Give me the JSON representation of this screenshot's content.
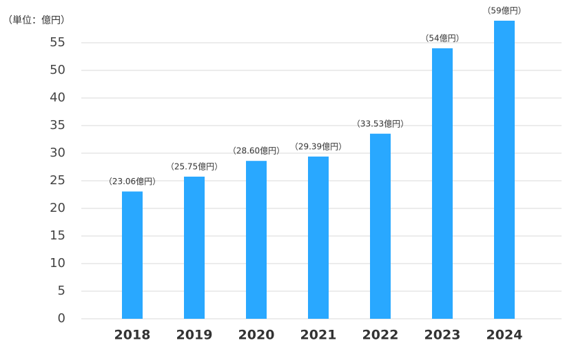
{
  "chart_data": {
    "type": "bar",
    "unit_label": "（単位：億円）",
    "categories": [
      "2018",
      "2019",
      "2020",
      "2021",
      "2022",
      "2023",
      "2024"
    ],
    "values": [
      23.06,
      25.75,
      28.6,
      29.39,
      33.53,
      54,
      59
    ],
    "value_labels": [
      "（23.06億円）",
      "（25.75億円）",
      "（28.60億円）",
      "（29.39億円）",
      "（33.53億円）",
      "（54億円）",
      "（59億円）"
    ],
    "color": "#29a8ff",
    "ylim": [
      0,
      60
    ],
    "yticks": [
      0,
      5,
      10,
      15,
      20,
      25,
      30,
      35,
      40,
      50,
      55
    ],
    "grid": true
  }
}
